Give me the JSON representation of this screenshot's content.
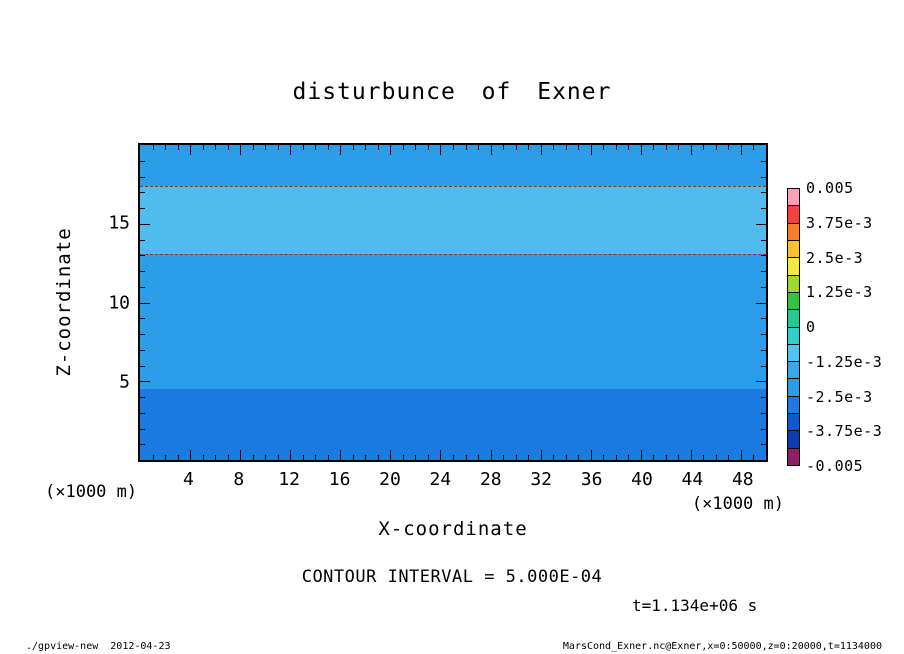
{
  "title": "disturbunce of Exner",
  "axes": {
    "x": {
      "label": "X-coordinate",
      "unit_left": "(×1000 m)",
      "unit_right": "(×1000 m)",
      "tick_labels": [
        "4",
        "8",
        "12",
        "16",
        "20",
        "24",
        "28",
        "32",
        "36",
        "40",
        "44",
        "48"
      ]
    },
    "y": {
      "label": "Z-coordinate",
      "tick_labels": [
        "5",
        "10",
        "15"
      ]
    }
  },
  "annotations": {
    "contour_interval": "CONTOUR INTERVAL = 5.000E-04",
    "time": "t=1.134e+06 s"
  },
  "footer": {
    "left": "./gpview-new  2012-04-23",
    "right": "MarsCond_Exner.nc@Exner,x=0:50000,z=0:20000,t=1134000"
  },
  "colorbar": {
    "labels": [
      "0.005",
      "3.75e-3",
      "2.5e-3",
      "1.25e-3",
      "0",
      "-1.25e-3",
      "-2.5e-3",
      "-3.75e-3",
      "-0.005"
    ],
    "cell_colors": [
      "#fca0b8",
      "#f54040",
      "#f87c28",
      "#fcc030",
      "#f2ea40",
      "#a0d830",
      "#38c040",
      "#28c890",
      "#30d0cc",
      "#50c4f0",
      "#38a8ec",
      "#2b9de9",
      "#1b7be1",
      "#1058d0",
      "#0c3cae",
      "#8c2060"
    ]
  },
  "chart_data": {
    "type": "heatmap",
    "title": "disturbunce of Exner",
    "xlabel": "X-coordinate",
    "ylabel": "Z-coordinate",
    "x_unit": "×1000 m",
    "y_unit": "×1000 m",
    "xlim": [
      0,
      50
    ],
    "ylim": [
      0,
      20
    ],
    "x_major_ticks": [
      4,
      8,
      12,
      16,
      20,
      24,
      28,
      32,
      36,
      40,
      44,
      48
    ],
    "y_major_ticks": [
      5,
      10,
      15
    ],
    "x_minor_step": 1,
    "y_minor_step": 1,
    "grid": false,
    "legend_position": "right-colorbar",
    "contour_interval": 0.0005,
    "colorbar_range": [
      -0.005,
      0.005
    ],
    "bands": [
      {
        "z_from": 0,
        "z_to": 4.5,
        "color": "#1b7be1",
        "approx_value": -0.0028
      },
      {
        "z_from": 4.5,
        "z_to": 13.1,
        "color": "#2b9de9",
        "approx_value": -0.0023
      },
      {
        "z_from": 13.1,
        "z_to": 17.4,
        "color": "#4fbbef",
        "approx_value": -0.0019
      },
      {
        "z_from": 17.4,
        "z_to": 20,
        "color": "#2b9de9",
        "approx_value": -0.0023
      }
    ],
    "contour_lines": [
      {
        "z": 17.4,
        "style": "dashed",
        "color": "#a03030"
      },
      {
        "z": 13.1,
        "style": "dashed",
        "color": "#a03030"
      }
    ]
  }
}
